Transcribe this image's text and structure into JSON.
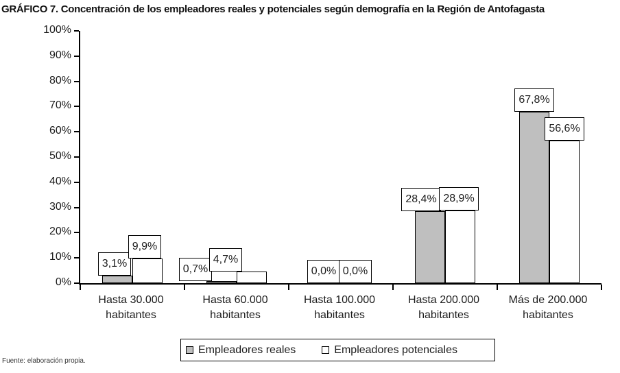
{
  "chart_data": {
    "type": "bar",
    "title": "GRÁFICO 7. Concentración de los empleadores reales y potenciales según demografía en la Región de Antofagasta",
    "categories": [
      "Hasta 30.000\nhabitantes",
      "Hasta 60.000\nhabitantes",
      "Hasta 100.000\nhabitantes",
      "Hasta 200.000\nhabitantes",
      "Más de 200.000\nhabitantes"
    ],
    "series": [
      {
        "name": "Empleadores reales",
        "color": "#bfbfbf",
        "values": [
          3.1,
          0.7,
          0.0,
          28.4,
          67.8
        ],
        "labels": [
          "3,1%",
          "0,7%",
          "0,0%",
          "28,4%",
          "67,8%"
        ]
      },
      {
        "name": "Empleadores potenciales",
        "color": "#ffffff",
        "values": [
          9.9,
          4.7,
          0.0,
          28.9,
          56.6
        ],
        "labels": [
          "9,9%",
          "4,7%",
          "0,0%",
          "28,9%",
          "56,6%"
        ]
      }
    ],
    "xlabel": "",
    "ylabel": "",
    "ylim": [
      0,
      100
    ],
    "ytick_step": 10,
    "ytick_suffix": "%",
    "grid": false,
    "legend_position": "bottom",
    "bar_border_color": "#000000",
    "label_box": {
      "bg": "#ffffff",
      "border": "#000000"
    },
    "label_dx": [
      [
        -4,
        -38,
        -3,
        -13,
        0
      ],
      [
        -4,
        -38,
        -1,
        -2,
        0
      ]
    ]
  },
  "source": "Fuente: elaboración propia."
}
